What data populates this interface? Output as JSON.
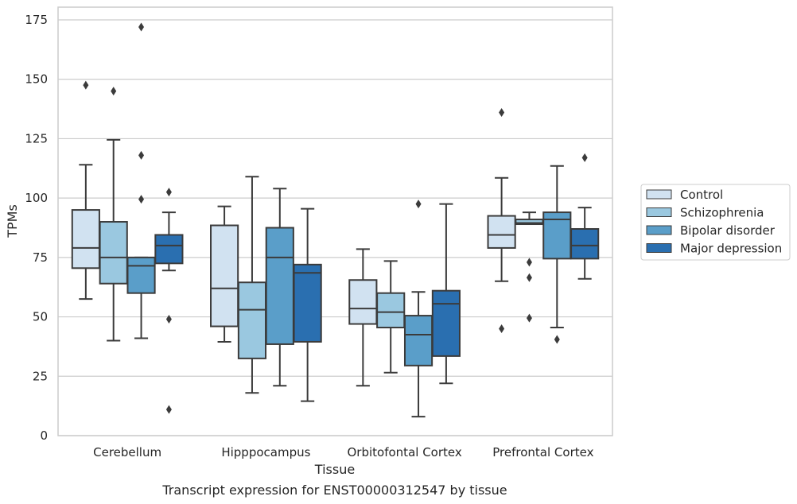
{
  "chart_data": {
    "type": "box",
    "xlabel": "Tissue",
    "ylabel": "TPMs",
    "caption": "Transcript expression for ENST00000312547 by tissue",
    "ylim": [
      0,
      180
    ],
    "yticks": [
      0,
      25,
      50,
      75,
      100,
      125,
      150,
      175
    ],
    "grid": "horizontal",
    "legend_position": "right",
    "categories": [
      "Cerebellum",
      "Hipppocampus",
      "Orbitofontal Cortex",
      "Prefrontal Cortex"
    ],
    "series": [
      {
        "name": "Control",
        "color": "#d1e2f1",
        "boxes": [
          {
            "whisker_low": 57.5,
            "q1": 70.5,
            "median": 79,
            "q3": 95,
            "whisker_high": 114,
            "outliers": [
              147.5
            ]
          },
          {
            "whisker_low": 39.5,
            "q1": 46,
            "median": 62,
            "q3": 88.5,
            "whisker_high": 96.5,
            "outliers": []
          },
          {
            "whisker_low": 21,
            "q1": 47,
            "median": 53.5,
            "q3": 65.5,
            "whisker_high": 78.5,
            "outliers": []
          },
          {
            "whisker_low": 65,
            "q1": 79,
            "median": 84.5,
            "q3": 92.5,
            "whisker_high": 108.5,
            "outliers": [
              136,
              45
            ]
          }
        ]
      },
      {
        "name": "Schizophrenia",
        "color": "#9ac8e0",
        "boxes": [
          {
            "whisker_low": 40,
            "q1": 64,
            "median": 75,
            "q3": 90,
            "whisker_high": 124.5,
            "outliers": [
              145
            ]
          },
          {
            "whisker_low": 18,
            "q1": 32.5,
            "median": 53,
            "q3": 64.5,
            "whisker_high": 109,
            "outliers": []
          },
          {
            "whisker_low": 26.5,
            "q1": 45.5,
            "median": 52,
            "q3": 60,
            "whisker_high": 73.5,
            "outliers": []
          },
          {
            "whisker_low": 89,
            "q1": 89,
            "median": 89.5,
            "q3": 91,
            "whisker_high": 94,
            "outliers": [
              73,
              66.5,
              49.5
            ]
          }
        ]
      },
      {
        "name": "Bipolar disorder",
        "color": "#5a9ec9",
        "boxes": [
          {
            "whisker_low": 41,
            "q1": 60,
            "median": 71.5,
            "q3": 75,
            "whisker_high": 75,
            "outliers": [
              172,
              118,
              99.5
            ]
          },
          {
            "whisker_low": 21,
            "q1": 38.5,
            "median": 75,
            "q3": 87.5,
            "whisker_high": 104,
            "outliers": []
          },
          {
            "whisker_low": 8,
            "q1": 29.5,
            "median": 42.5,
            "q3": 50.5,
            "whisker_high": 60.5,
            "outliers": [
              97.5
            ]
          },
          {
            "whisker_low": 45.5,
            "q1": 74.5,
            "median": 91,
            "q3": 94,
            "whisker_high": 113.5,
            "outliers": [
              40.5
            ]
          }
        ]
      },
      {
        "name": "Major depression",
        "color": "#2a6fb0",
        "boxes": [
          {
            "whisker_low": 69.5,
            "q1": 72.5,
            "median": 80,
            "q3": 84.5,
            "whisker_high": 94,
            "outliers": [
              102.5,
              49,
              11
            ]
          },
          {
            "whisker_low": 14.5,
            "q1": 39.5,
            "median": 68.5,
            "q3": 72,
            "whisker_high": 95.5,
            "outliers": []
          },
          {
            "whisker_low": 22,
            "q1": 33.5,
            "median": 55.5,
            "q3": 61,
            "whisker_high": 97.5,
            "outliers": []
          },
          {
            "whisker_low": 66,
            "q1": 74.5,
            "median": 80,
            "q3": 87,
            "whisker_high": 96,
            "outliers": [
              117
            ]
          }
        ]
      }
    ]
  }
}
